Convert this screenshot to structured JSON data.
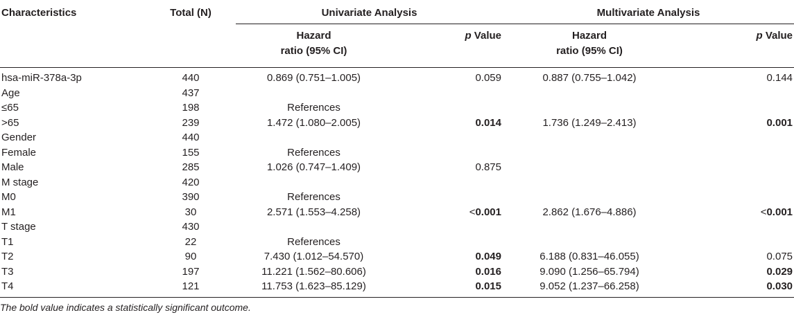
{
  "header": {
    "characteristics": "Characteristics",
    "total": "Total (N)",
    "univariate": "Univariate Analysis",
    "multivariate": "Multivariate Analysis",
    "hr_line1": "Hazard",
    "hr_line2": "ratio (95% CI)",
    "p_italic": "p",
    "p_rest": " Value"
  },
  "rows": [
    {
      "label": "hsa-miR-378a-3p",
      "n": "440",
      "u_hr": "0.869 (0.751–1.005)",
      "u_p": "0.059",
      "u_p_bold": false,
      "m_hr": "0.887 (0.755–1.042)",
      "m_p": "0.144",
      "m_p_bold": false
    },
    {
      "label": "Age",
      "n": "437",
      "u_hr": "",
      "u_p": "",
      "u_p_bold": false,
      "m_hr": "",
      "m_p": "",
      "m_p_bold": false
    },
    {
      "label": "≤65",
      "n": "198",
      "u_hr": "References",
      "u_p": "",
      "u_p_bold": false,
      "m_hr": "",
      "m_p": "",
      "m_p_bold": false
    },
    {
      "label": ">65",
      "n": "239",
      "u_hr": "1.472 (1.080–2.005)",
      "u_p": "0.014",
      "u_p_bold": true,
      "m_hr": "1.736 (1.249–2.413)",
      "m_p": "0.001",
      "m_p_bold": true
    },
    {
      "label": "Gender",
      "n": "440",
      "u_hr": "",
      "u_p": "",
      "u_p_bold": false,
      "m_hr": "",
      "m_p": "",
      "m_p_bold": false
    },
    {
      "label": "Female",
      "n": "155",
      "u_hr": "References",
      "u_p": "",
      "u_p_bold": false,
      "m_hr": "",
      "m_p": "",
      "m_p_bold": false
    },
    {
      "label": "Male",
      "n": "285",
      "u_hr": "1.026 (0.747–1.409)",
      "u_p": "0.875",
      "u_p_bold": false,
      "m_hr": "",
      "m_p": "",
      "m_p_bold": false
    },
    {
      "label": "M stage",
      "n": "420",
      "u_hr": "",
      "u_p": "",
      "u_p_bold": false,
      "m_hr": "",
      "m_p": "",
      "m_p_bold": false
    },
    {
      "label": "M0",
      "n": "390",
      "u_hr": "References",
      "u_p": "",
      "u_p_bold": false,
      "m_hr": "",
      "m_p": "",
      "m_p_bold": false
    },
    {
      "label": "M1",
      "n": "30",
      "u_hr": "2.571 (1.553–4.258)",
      "u_p_prefix": "<",
      "u_p": "0.001",
      "u_p_bold": true,
      "m_hr": "2.862 (1.676–4.886)",
      "m_p_prefix": "<",
      "m_p": "0.001",
      "m_p_bold": true
    },
    {
      "label": "T stage",
      "n": "430",
      "u_hr": "",
      "u_p": "",
      "u_p_bold": false,
      "m_hr": "",
      "m_p": "",
      "m_p_bold": false
    },
    {
      "label": "T1",
      "n": "22",
      "u_hr": "References",
      "u_p": "",
      "u_p_bold": false,
      "m_hr": "",
      "m_p": "",
      "m_p_bold": false
    },
    {
      "label": "T2",
      "n": "90",
      "u_hr": "7.430 (1.012–54.570)",
      "u_p": "0.049",
      "u_p_bold": true,
      "m_hr": "6.188 (0.831–46.055)",
      "m_p": "0.075",
      "m_p_bold": false
    },
    {
      "label": "T3",
      "n": "197",
      "u_hr": "11.221 (1.562–80.606)",
      "u_p": "0.016",
      "u_p_bold": true,
      "m_hr": "9.090 (1.256–65.794)",
      "m_p": "0.029",
      "m_p_bold": true
    },
    {
      "label": "T4",
      "n": "121",
      "u_hr": "11.753 (1.623–85.129)",
      "u_p": "0.015",
      "u_p_bold": true,
      "m_hr": "9.052 (1.237–66.258)",
      "m_p": "0.030",
      "m_p_bold": true
    }
  ],
  "footnote": "The bold value indicates a statistically significant outcome."
}
